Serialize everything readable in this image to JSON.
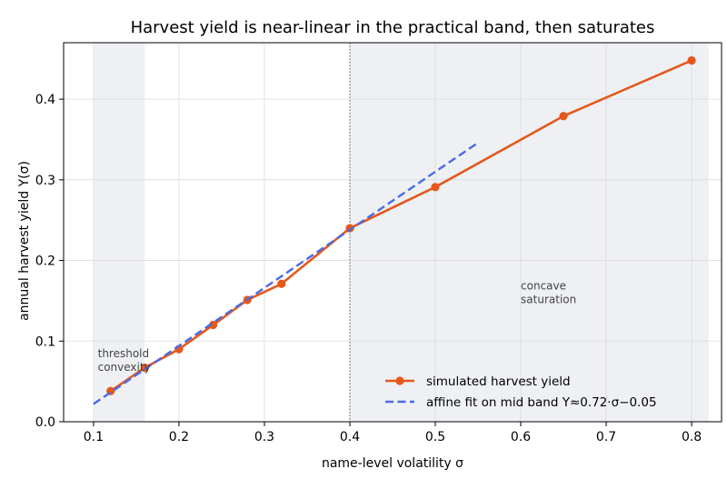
{
  "chart_data": {
    "type": "line",
    "title": "Harvest yield is near-linear in the practical band, then saturates",
    "xlabel": "name-level volatility  σ",
    "ylabel": "annual harvest yield  Y(σ)",
    "xlim": [
      0.065,
      0.835
    ],
    "ylim": [
      0.0,
      0.47
    ],
    "x_ticks": [
      0.1,
      0.2,
      0.3,
      0.4,
      0.5,
      0.6,
      0.7,
      0.8
    ],
    "x_tick_labels": [
      "0.1",
      "0.2",
      "0.3",
      "0.4",
      "0.5",
      "0.6",
      "0.7",
      "0.8"
    ],
    "y_ticks": [
      0.0,
      0.1,
      0.2,
      0.3,
      0.4
    ],
    "y_tick_labels": [
      "0.0",
      "0.1",
      "0.2",
      "0.3",
      "0.4"
    ],
    "grid": true,
    "legend_position": "lower-right",
    "series": [
      {
        "name": "simulated harvest yield",
        "style": "solid-with-markers",
        "color": "#e4581c",
        "x": [
          0.12,
          0.16,
          0.2,
          0.24,
          0.28,
          0.32,
          0.4,
          0.5,
          0.65,
          0.8
        ],
        "y": [
          0.038,
          0.067,
          0.09,
          0.12,
          0.151,
          0.171,
          0.24,
          0.291,
          0.379,
          0.448
        ]
      },
      {
        "name": "affine fit on mid band  Y≈0.72·σ−0.05",
        "style": "dashed",
        "color": "#4a6ae6",
        "x": [
          0.1,
          0.55
        ],
        "y": [
          0.022,
          0.346
        ]
      }
    ],
    "shaded_regions": [
      {
        "x0": 0.1,
        "x1": 0.16,
        "color": "#eef0f3"
      },
      {
        "x0": 0.4,
        "x1": 0.82,
        "color": "#eef0f3"
      }
    ],
    "reference_lines": [
      {
        "x": 0.4,
        "color": "#6e7b8b",
        "style": "dotted"
      }
    ],
    "annotations": [
      {
        "text_lines": [
          "threshold",
          "convexity"
        ],
        "x": 0.105,
        "y": 0.08
      },
      {
        "text_lines": [
          "concave",
          "saturation"
        ],
        "x": 0.6,
        "y": 0.164
      }
    ]
  }
}
